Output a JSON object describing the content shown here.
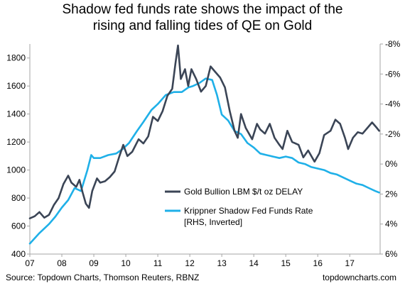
{
  "header": {
    "title_line1": "Shadow fed funds rate shows the impact of the",
    "title_line2": "rising and falling tides of QE on Gold"
  },
  "footer": {
    "source": "Source: Topdown Charts, Thomson Reuters, RBNZ",
    "brand": "topdowncharts.com"
  },
  "colors": {
    "gold_series": "#3b4556",
    "shadow_series": "#1fb0e8",
    "axis": "#a6a6a6"
  },
  "chart_data": {
    "type": "line",
    "title": "Shadow fed funds rate shows the impact of the rising and falling tides of QE on Gold",
    "x_ticks": [
      "07",
      "08",
      "09",
      "10",
      "11",
      "12",
      "13",
      "14",
      "15",
      "16",
      "17"
    ],
    "xlim": [
      2007,
      2017.95
    ],
    "y_left": {
      "ticks": [
        "1800",
        "1600",
        "1400",
        "1200",
        "1000",
        "800",
        "600",
        "400"
      ],
      "lim": [
        400,
        1900
      ]
    },
    "y_right": {
      "ticks": [
        "-8%",
        "-6%",
        "-4%",
        "-2%",
        "0%",
        "2%",
        "4%",
        "6%"
      ],
      "lim": [
        6,
        -8
      ],
      "inverted": true
    },
    "grid": false,
    "legend_position": "lower-right, inside plot",
    "series": [
      {
        "name": "Gold Bullion LBM $/t oz DELAY",
        "axis": "left",
        "points": [
          [
            2007.0,
            655
          ],
          [
            2007.15,
            670
          ],
          [
            2007.3,
            700
          ],
          [
            2007.45,
            660
          ],
          [
            2007.6,
            680
          ],
          [
            2007.75,
            750
          ],
          [
            2007.9,
            800
          ],
          [
            2008.05,
            900
          ],
          [
            2008.2,
            960
          ],
          [
            2008.3,
            910
          ],
          [
            2008.45,
            880
          ],
          [
            2008.55,
            930
          ],
          [
            2008.65,
            840
          ],
          [
            2008.75,
            760
          ],
          [
            2008.85,
            730
          ],
          [
            2008.95,
            850
          ],
          [
            2009.1,
            940
          ],
          [
            2009.2,
            910
          ],
          [
            2009.35,
            920
          ],
          [
            2009.5,
            950
          ],
          [
            2009.65,
            990
          ],
          [
            2009.8,
            1100
          ],
          [
            2009.92,
            1180
          ],
          [
            2010.05,
            1100
          ],
          [
            2010.2,
            1130
          ],
          [
            2010.4,
            1220
          ],
          [
            2010.55,
            1190
          ],
          [
            2010.7,
            1240
          ],
          [
            2010.85,
            1380
          ],
          [
            2011.0,
            1350
          ],
          [
            2011.15,
            1420
          ],
          [
            2011.3,
            1530
          ],
          [
            2011.45,
            1580
          ],
          [
            2011.55,
            1760
          ],
          [
            2011.63,
            1890
          ],
          [
            2011.72,
            1650
          ],
          [
            2011.85,
            1720
          ],
          [
            2011.95,
            1600
          ],
          [
            2012.05,
            1720
          ],
          [
            2012.2,
            1650
          ],
          [
            2012.35,
            1560
          ],
          [
            2012.5,
            1600
          ],
          [
            2012.65,
            1740
          ],
          [
            2012.8,
            1700
          ],
          [
            2012.95,
            1660
          ],
          [
            2013.1,
            1590
          ],
          [
            2013.25,
            1420
          ],
          [
            2013.4,
            1280
          ],
          [
            2013.5,
            1230
          ],
          [
            2013.6,
            1400
          ],
          [
            2013.75,
            1300
          ],
          [
            2013.95,
            1220
          ],
          [
            2014.1,
            1330
          ],
          [
            2014.2,
            1290
          ],
          [
            2014.35,
            1260
          ],
          [
            2014.5,
            1330
          ],
          [
            2014.65,
            1230
          ],
          [
            2014.8,
            1180
          ],
          [
            2014.9,
            1150
          ],
          [
            2015.05,
            1280
          ],
          [
            2015.2,
            1200
          ],
          [
            2015.4,
            1180
          ],
          [
            2015.55,
            1090
          ],
          [
            2015.7,
            1140
          ],
          [
            2015.9,
            1060
          ],
          [
            2016.05,
            1120
          ],
          [
            2016.2,
            1250
          ],
          [
            2016.4,
            1280
          ],
          [
            2016.55,
            1360
          ],
          [
            2016.7,
            1330
          ],
          [
            2016.85,
            1230
          ],
          [
            2016.95,
            1150
          ],
          [
            2017.1,
            1230
          ],
          [
            2017.25,
            1270
          ],
          [
            2017.4,
            1260
          ],
          [
            2017.55,
            1300
          ],
          [
            2017.7,
            1340
          ],
          [
            2017.85,
            1300
          ],
          [
            2017.92,
            1280
          ]
        ]
      },
      {
        "name": "Krippner Shadow Fed Funds Rate",
        "name_line2": "[RHS, Inverted]",
        "axis": "right",
        "points": [
          [
            2007.0,
            5.3
          ],
          [
            2007.3,
            4.6
          ],
          [
            2007.6,
            4.0
          ],
          [
            2007.8,
            3.5
          ],
          [
            2008.0,
            2.9
          ],
          [
            2008.2,
            2.4
          ],
          [
            2008.4,
            1.6
          ],
          [
            2008.6,
            1.8
          ],
          [
            2008.8,
            0.4
          ],
          [
            2008.92,
            -0.6
          ],
          [
            2009.0,
            -0.4
          ],
          [
            2009.2,
            -0.4
          ],
          [
            2009.45,
            -0.6
          ],
          [
            2009.7,
            -0.7
          ],
          [
            2009.9,
            -1.0
          ],
          [
            2010.1,
            -1.4
          ],
          [
            2010.35,
            -2.2
          ],
          [
            2010.55,
            -2.8
          ],
          [
            2010.8,
            -3.6
          ],
          [
            2011.0,
            -4.0
          ],
          [
            2011.25,
            -4.6
          ],
          [
            2011.5,
            -4.8
          ],
          [
            2011.75,
            -4.8
          ],
          [
            2011.95,
            -5.1
          ],
          [
            2012.1,
            -5.2
          ],
          [
            2012.3,
            -5.4
          ],
          [
            2012.5,
            -5.7
          ],
          [
            2012.7,
            -5.6
          ],
          [
            2012.85,
            -4.6
          ],
          [
            2013.0,
            -3.3
          ],
          [
            2013.2,
            -2.9
          ],
          [
            2013.4,
            -2.2
          ],
          [
            2013.6,
            -2.0
          ],
          [
            2013.8,
            -1.4
          ],
          [
            2014.0,
            -1.1
          ],
          [
            2014.2,
            -0.7
          ],
          [
            2014.4,
            -0.6
          ],
          [
            2014.6,
            -0.5
          ],
          [
            2014.8,
            -0.4
          ],
          [
            2015.0,
            -0.5
          ],
          [
            2015.2,
            -0.4
          ],
          [
            2015.4,
            -0.1
          ],
          [
            2015.6,
            0.0
          ],
          [
            2015.8,
            0.2
          ],
          [
            2016.0,
            0.3
          ],
          [
            2016.2,
            0.4
          ],
          [
            2016.4,
            0.6
          ],
          [
            2016.6,
            0.7
          ],
          [
            2016.8,
            0.9
          ],
          [
            2017.0,
            1.1
          ],
          [
            2017.2,
            1.3
          ],
          [
            2017.4,
            1.4
          ],
          [
            2017.6,
            1.6
          ],
          [
            2017.8,
            1.8
          ],
          [
            2017.92,
            1.9
          ]
        ]
      }
    ]
  }
}
